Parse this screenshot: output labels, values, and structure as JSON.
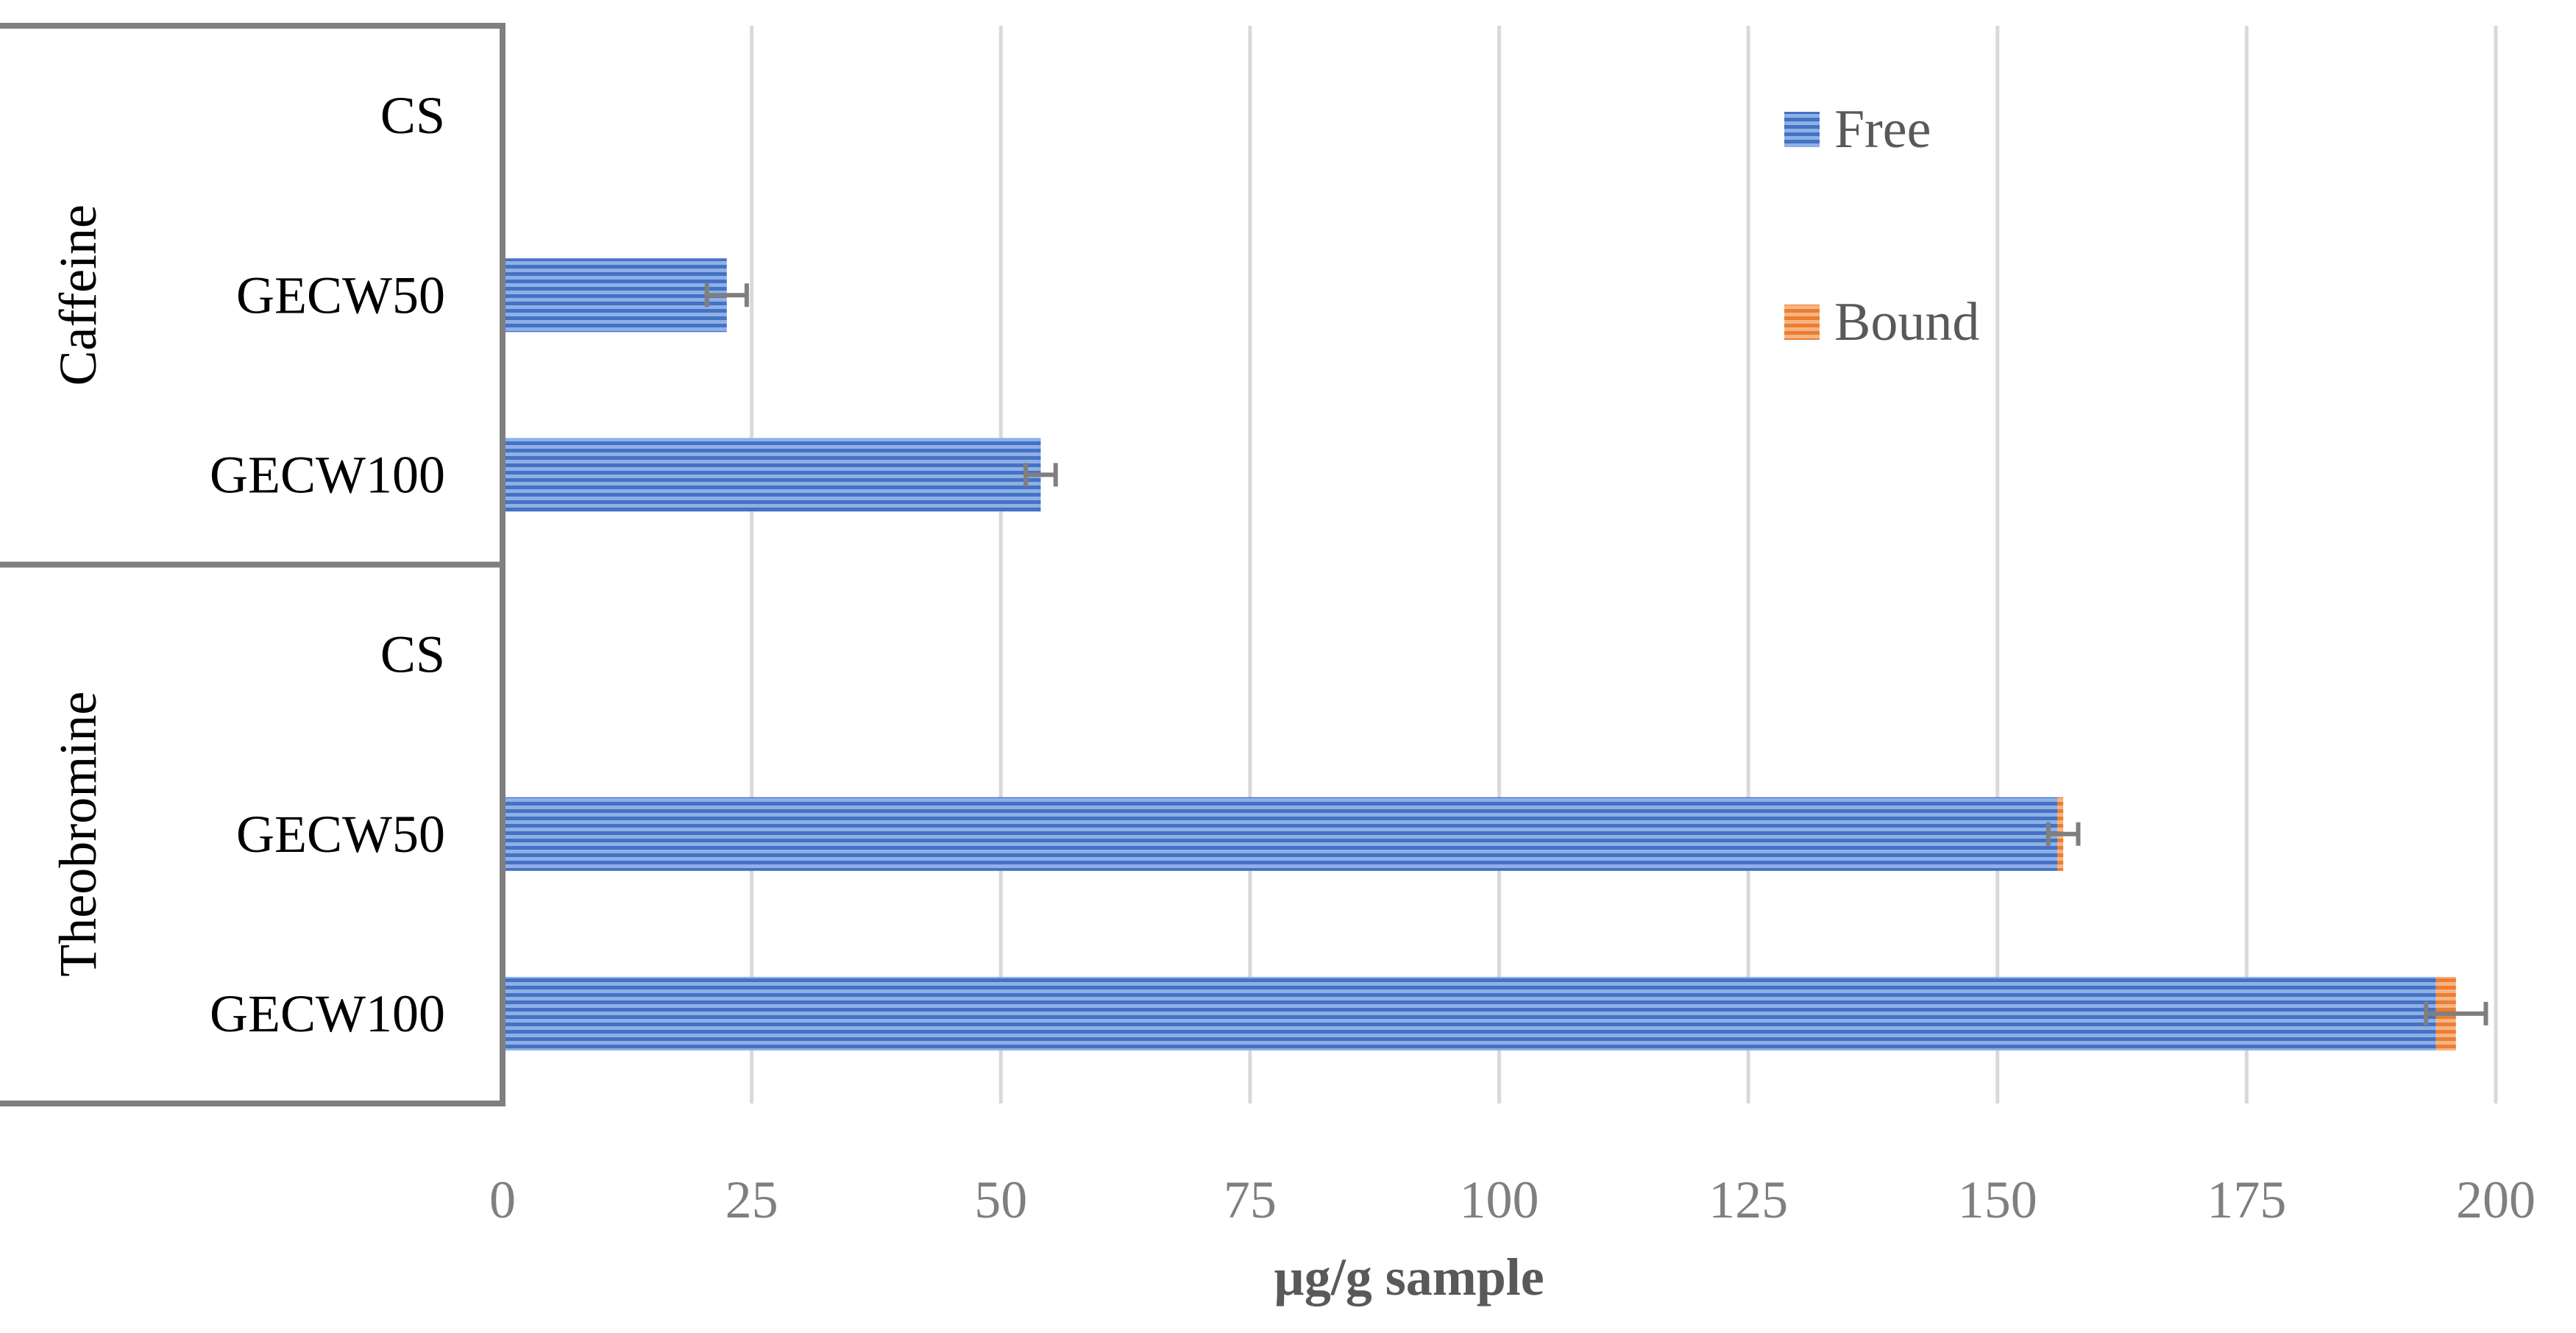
{
  "chart_data": {
    "type": "bar",
    "orientation": "horizontal",
    "stacked": true,
    "title": "",
    "xlabel": "µg/g sample",
    "ylabel": "",
    "xlim": [
      0,
      200
    ],
    "xticks": [
      0,
      25,
      50,
      75,
      100,
      125,
      150,
      175,
      200
    ],
    "grid": true,
    "legend_position": "top-right",
    "groups": [
      {
        "name": "Caffeine",
        "categories": [
          "CS",
          "GECW50",
          "GECW100"
        ]
      },
      {
        "name": "Theobromine",
        "categories": [
          "CS",
          "GECW50",
          "GECW100"
        ]
      }
    ],
    "series": [
      {
        "name": "Free",
        "color": "#4472C4",
        "values": [
          [
            0,
            22.5,
            54
          ],
          [
            0,
            156,
            194
          ]
        ]
      },
      {
        "name": "Bound",
        "color": "#ED7D31",
        "values": [
          [
            0,
            0,
            0
          ],
          [
            0,
            0.6,
            2
          ]
        ]
      }
    ],
    "error_bars": [
      [
        0,
        2,
        1.5
      ],
      [
        0,
        1.5,
        3
      ]
    ]
  }
}
